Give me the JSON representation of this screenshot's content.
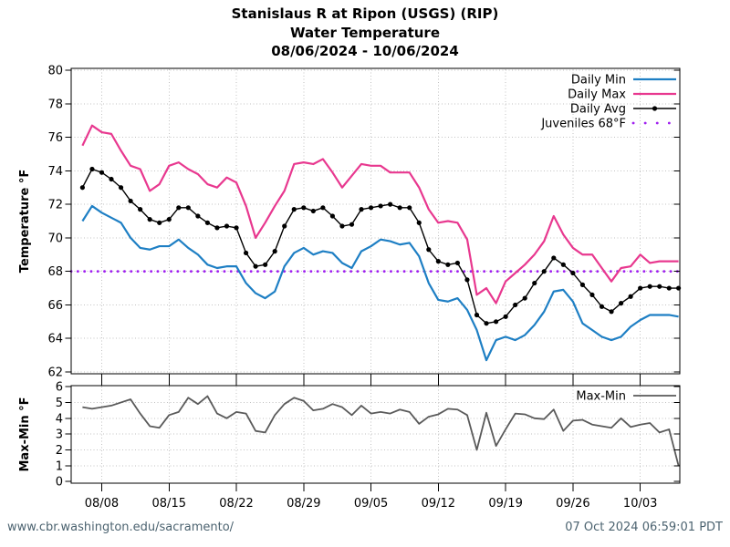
{
  "title": {
    "line1": "Stanislaus R at Ripon (USGS) (RIP)",
    "line2": "Water Temperature",
    "line3": "08/06/2024 - 10/06/2024"
  },
  "footer": {
    "url": "www.cbr.washington.edu/sacramento/",
    "timestamp": "07 Oct 2024 06:59:01 PDT"
  },
  "colors": {
    "daily_min": "#1e7fc4",
    "daily_max": "#e8388f",
    "daily_avg": "#000000",
    "juveniles": "#a020f0",
    "max_min": "#5a5a5a",
    "grid": "#c2c2c2",
    "axis": "#000000",
    "footer_text": "#4c6370"
  },
  "chart_data": [
    {
      "type": "line",
      "title": "Water Temperature",
      "xlabel": "",
      "ylabel": "Temperature °F",
      "ylim": [
        62,
        80
      ],
      "yticks": [
        62,
        64,
        66,
        68,
        70,
        72,
        74,
        76,
        78,
        80
      ],
      "grid": true,
      "legend_position": "top-right",
      "x_tick_labels": [
        "08/08",
        "08/15",
        "08/22",
        "08/29",
        "09/05",
        "09/12",
        "09/19",
        "09/26",
        "10/03"
      ],
      "x_tick_indices": [
        2,
        9,
        16,
        23,
        30,
        37,
        44,
        51,
        58
      ],
      "dates": [
        "08/06",
        "08/07",
        "08/08",
        "08/09",
        "08/10",
        "08/11",
        "08/12",
        "08/13",
        "08/14",
        "08/15",
        "08/16",
        "08/17",
        "08/18",
        "08/19",
        "08/20",
        "08/21",
        "08/22",
        "08/23",
        "08/24",
        "08/25",
        "08/26",
        "08/27",
        "08/28",
        "08/29",
        "08/30",
        "08/31",
        "09/01",
        "09/02",
        "09/03",
        "09/04",
        "09/05",
        "09/06",
        "09/07",
        "09/08",
        "09/09",
        "09/10",
        "09/11",
        "09/12",
        "09/13",
        "09/14",
        "09/15",
        "09/16",
        "09/17",
        "09/18",
        "09/19",
        "09/20",
        "09/21",
        "09/22",
        "09/23",
        "09/24",
        "09/25",
        "09/26",
        "09/27",
        "09/28",
        "09/29",
        "09/30",
        "10/01",
        "10/02",
        "10/03",
        "10/04",
        "10/05",
        "10/06",
        "10/07"
      ],
      "series": [
        {
          "name": "Daily Min",
          "values": [
            71.0,
            71.9,
            71.5,
            71.2,
            70.9,
            70.0,
            69.4,
            69.3,
            69.5,
            69.5,
            69.9,
            69.4,
            69.0,
            68.4,
            68.2,
            68.3,
            68.3,
            67.3,
            66.7,
            66.4,
            66.8,
            68.3,
            69.1,
            69.4,
            69.0,
            69.2,
            69.1,
            68.5,
            68.2,
            69.2,
            69.5,
            69.9,
            69.8,
            69.6,
            69.7,
            68.9,
            67.3,
            66.3,
            66.2,
            66.4,
            65.7,
            64.5,
            62.7,
            63.9,
            64.1,
            63.9,
            64.2,
            64.8,
            65.6,
            66.8,
            66.9,
            66.2,
            64.9,
            64.5,
            64.1,
            63.9,
            64.1,
            64.7,
            65.1,
            65.4,
            65.4,
            65.4,
            65.3
          ]
        },
        {
          "name": "Daily Max",
          "values": [
            75.5,
            76.7,
            76.3,
            76.2,
            75.2,
            74.3,
            74.1,
            72.8,
            73.2,
            74.3,
            74.5,
            74.1,
            73.8,
            73.2,
            73.0,
            73.6,
            73.3,
            71.9,
            70.0,
            70.9,
            71.9,
            72.8,
            74.4,
            74.5,
            74.4,
            74.7,
            73.9,
            73.0,
            73.7,
            74.4,
            74.3,
            74.3,
            73.9,
            73.9,
            73.9,
            73.0,
            71.7,
            70.9,
            71.0,
            70.9,
            69.9,
            66.6,
            67.0,
            66.1,
            67.4,
            67.9,
            68.4,
            69.0,
            69.8,
            71.3,
            70.2,
            69.4,
            69.0,
            69.0,
            68.2,
            67.4,
            68.2,
            68.3,
            69.0,
            68.5,
            68.6,
            68.6,
            68.6
          ]
        },
        {
          "name": "Daily Avg",
          "values": [
            73.0,
            74.1,
            73.9,
            73.5,
            73.0,
            72.2,
            71.7,
            71.1,
            70.9,
            71.1,
            71.8,
            71.8,
            71.3,
            70.9,
            70.6,
            70.7,
            70.6,
            69.1,
            68.3,
            68.4,
            69.2,
            70.7,
            71.7,
            71.8,
            71.6,
            71.8,
            71.3,
            70.7,
            70.8,
            71.7,
            71.8,
            71.9,
            72.0,
            71.8,
            71.8,
            70.9,
            69.3,
            68.6,
            68.4,
            68.5,
            67.5,
            65.4,
            64.9,
            65.0,
            65.3,
            66.0,
            66.4,
            67.3,
            68.0,
            68.8,
            68.4,
            67.9,
            67.2,
            66.6,
            65.9,
            65.6,
            66.1,
            66.5,
            67.0,
            67.1,
            67.1,
            67.0,
            67.0
          ]
        }
      ],
      "threshold": {
        "name": "Juveniles 68°F",
        "value": 68
      }
    },
    {
      "type": "line",
      "title": "Max-Min",
      "xlabel": "",
      "ylabel": "Max-Min °F",
      "ylim": [
        0,
        6
      ],
      "yticks": [
        0,
        1,
        2,
        3,
        4,
        5,
        6
      ],
      "grid": true,
      "legend_position": "top-right",
      "x_shared_with_chart": 0,
      "series": [
        {
          "name": "Max-Min",
          "values": [
            4.7,
            4.6,
            4.7,
            4.8,
            5.0,
            5.2,
            4.3,
            3.5,
            3.4,
            4.2,
            4.4,
            5.3,
            4.9,
            5.4,
            4.3,
            4.0,
            4.4,
            4.3,
            3.2,
            3.1,
            4.2,
            4.9,
            5.3,
            5.1,
            4.5,
            4.6,
            4.9,
            4.7,
            4.2,
            4.8,
            4.3,
            4.4,
            4.3,
            4.55,
            4.4,
            3.65,
            4.1,
            4.25,
            4.6,
            4.55,
            4.2,
            2.0,
            4.35,
            2.25,
            3.3,
            4.3,
            4.25,
            4.0,
            3.95,
            4.55,
            3.2,
            3.85,
            3.9,
            3.6,
            3.5,
            3.4,
            4.0,
            3.45,
            3.6,
            3.7,
            3.1,
            3.3,
            1.0
          ]
        }
      ]
    }
  ]
}
